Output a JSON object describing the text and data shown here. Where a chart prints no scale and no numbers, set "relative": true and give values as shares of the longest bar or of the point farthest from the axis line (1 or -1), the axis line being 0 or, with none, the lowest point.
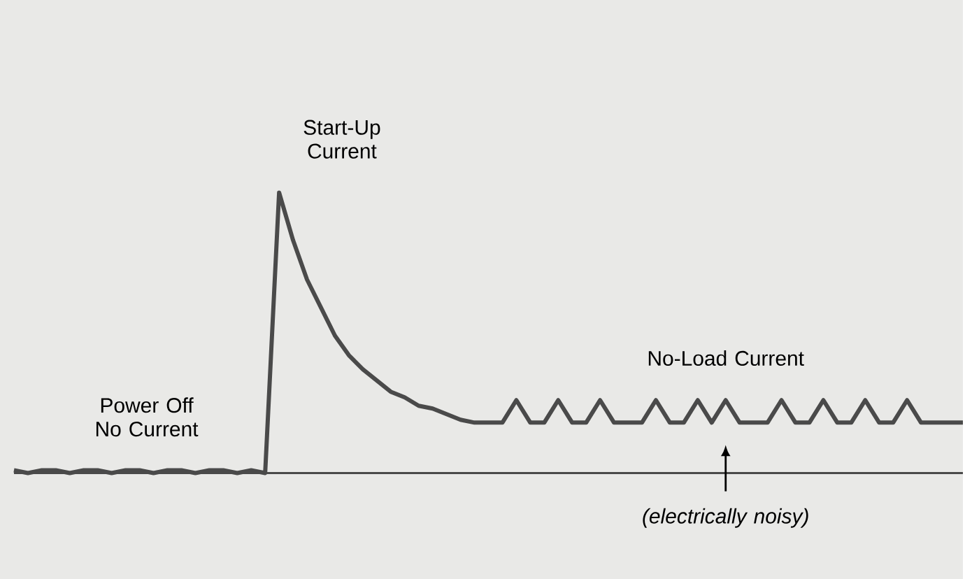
{
  "chart_data": {
    "type": "line",
    "relative": true,
    "color": "#4a4a4a",
    "categories": [
      null,
      null,
      null,
      null,
      null,
      null,
      null,
      null,
      null,
      null,
      null,
      null,
      null,
      null,
      null,
      null,
      null,
      null,
      null,
      null,
      null,
      null,
      null,
      null,
      null,
      null,
      null,
      null,
      null,
      null,
      null,
      null,
      null,
      null,
      null,
      null,
      null,
      null,
      null,
      null,
      null,
      null,
      null,
      null,
      null,
      null,
      null,
      null,
      null,
      null,
      null,
      null,
      null,
      null,
      null,
      null,
      null,
      null,
      null,
      null,
      null,
      null,
      null,
      null,
      null,
      null,
      null,
      null,
      null
    ],
    "values": [
      0.01,
      0.0,
      0.01,
      0.01,
      0.0,
      0.01,
      0.01,
      0.0,
      0.01,
      0.01,
      0.0,
      0.01,
      0.01,
      0.0,
      0.01,
      0.01,
      0.0,
      0.01,
      0.0,
      1.0,
      0.83,
      0.69,
      0.59,
      0.49,
      0.42,
      0.37,
      0.33,
      0.29,
      0.27,
      0.24,
      0.23,
      0.21,
      0.19,
      0.18,
      0.18,
      0.18,
      0.26,
      0.18,
      0.18,
      0.26,
      0.18,
      0.18,
      0.26,
      0.18,
      0.18,
      0.18,
      0.26,
      0.18,
      0.18,
      0.26,
      0.18,
      0.26,
      0.18,
      0.18,
      0.18,
      0.26,
      0.18,
      0.18,
      0.26,
      0.18,
      0.18,
      0.26,
      0.18,
      0.18,
      0.26,
      0.18,
      0.18,
      0.18,
      0.18
    ],
    "annotations": [
      "Start-Up Current",
      "Power Off No Current",
      "No-Load Current",
      "(electrically noisy)"
    ]
  }
}
